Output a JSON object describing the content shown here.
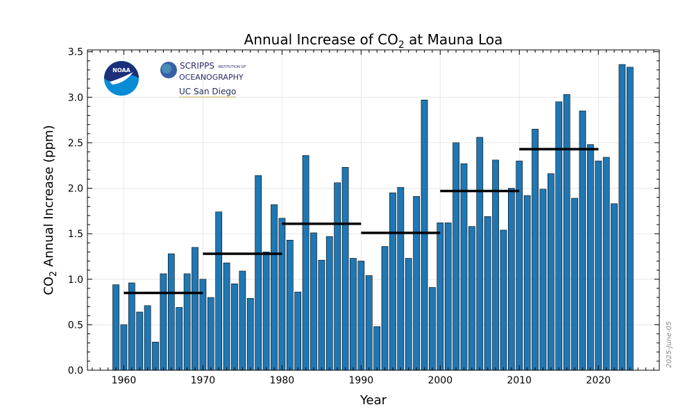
{
  "chart_data": {
    "type": "bar",
    "title_prefix": "Annual Increase of CO",
    "title_sub": "2",
    "title_suffix": " at Mauna Loa",
    "xlabel": "Year",
    "ylabel_prefix": "CO",
    "ylabel_sub": "2",
    "ylabel_suffix": " Annual Increase (ppm)",
    "xlim": [
      1955.4,
      2027.7
    ],
    "ylim": [
      0,
      3.52
    ],
    "xticks": [
      1960,
      1970,
      1980,
      1990,
      2000,
      2010,
      2020
    ],
    "yticks": [
      "0.0",
      "0.5",
      "1.0",
      "1.5",
      "2.0",
      "2.5",
      "3.0",
      "3.5"
    ],
    "grid": true,
    "bar_color": "#1f77b4",
    "mean_line_color": "#000000",
    "years": [
      1959,
      1960,
      1961,
      1962,
      1963,
      1964,
      1965,
      1966,
      1967,
      1968,
      1969,
      1970,
      1971,
      1972,
      1973,
      1974,
      1975,
      1976,
      1977,
      1978,
      1979,
      1980,
      1981,
      1982,
      1983,
      1984,
      1985,
      1986,
      1987,
      1988,
      1989,
      1990,
      1991,
      1992,
      1993,
      1994,
      1995,
      1996,
      1997,
      1998,
      1999,
      2000,
      2001,
      2002,
      2003,
      2004,
      2005,
      2006,
      2007,
      2008,
      2009,
      2010,
      2011,
      2012,
      2013,
      2014,
      2015,
      2016,
      2017,
      2018,
      2019,
      2020,
      2021,
      2022,
      2023,
      2024
    ],
    "values": [
      0.94,
      0.5,
      0.96,
      0.64,
      0.71,
      0.31,
      1.06,
      1.28,
      0.69,
      1.06,
      1.35,
      1.0,
      0.8,
      1.74,
      1.18,
      0.95,
      1.09,
      0.79,
      2.14,
      1.3,
      1.82,
      1.67,
      1.43,
      0.86,
      2.36,
      1.51,
      1.21,
      1.47,
      2.06,
      2.23,
      1.23,
      1.2,
      1.04,
      0.48,
      1.36,
      1.95,
      2.01,
      1.23,
      1.91,
      2.97,
      0.91,
      1.62,
      1.62,
      2.5,
      2.27,
      1.58,
      2.56,
      1.69,
      2.31,
      1.54,
      2.0,
      2.3,
      1.92,
      2.65,
      1.99,
      2.16,
      2.95,
      3.03,
      1.89,
      2.85,
      2.48,
      2.3,
      2.34,
      1.83,
      3.36,
      3.33
    ],
    "decade_means": [
      {
        "start": 1960,
        "end": 1970,
        "value": 0.85
      },
      {
        "start": 1970,
        "end": 1980,
        "value": 1.28
      },
      {
        "start": 1980,
        "end": 1990,
        "value": 1.61
      },
      {
        "start": 1990,
        "end": 2000,
        "value": 1.51
      },
      {
        "start": 2000,
        "end": 2010,
        "value": 1.97
      },
      {
        "start": 2010,
        "end": 2020,
        "value": 2.43
      }
    ],
    "date_stamp": "2025-June-05"
  },
  "logos": {
    "noaa": "NOAA",
    "scripps_line1": "SCRIPPS",
    "scripps_small": "INSTITUTION OF",
    "scripps_line2": "OCEANOGRAPHY",
    "ucsd": "UC San Diego"
  }
}
